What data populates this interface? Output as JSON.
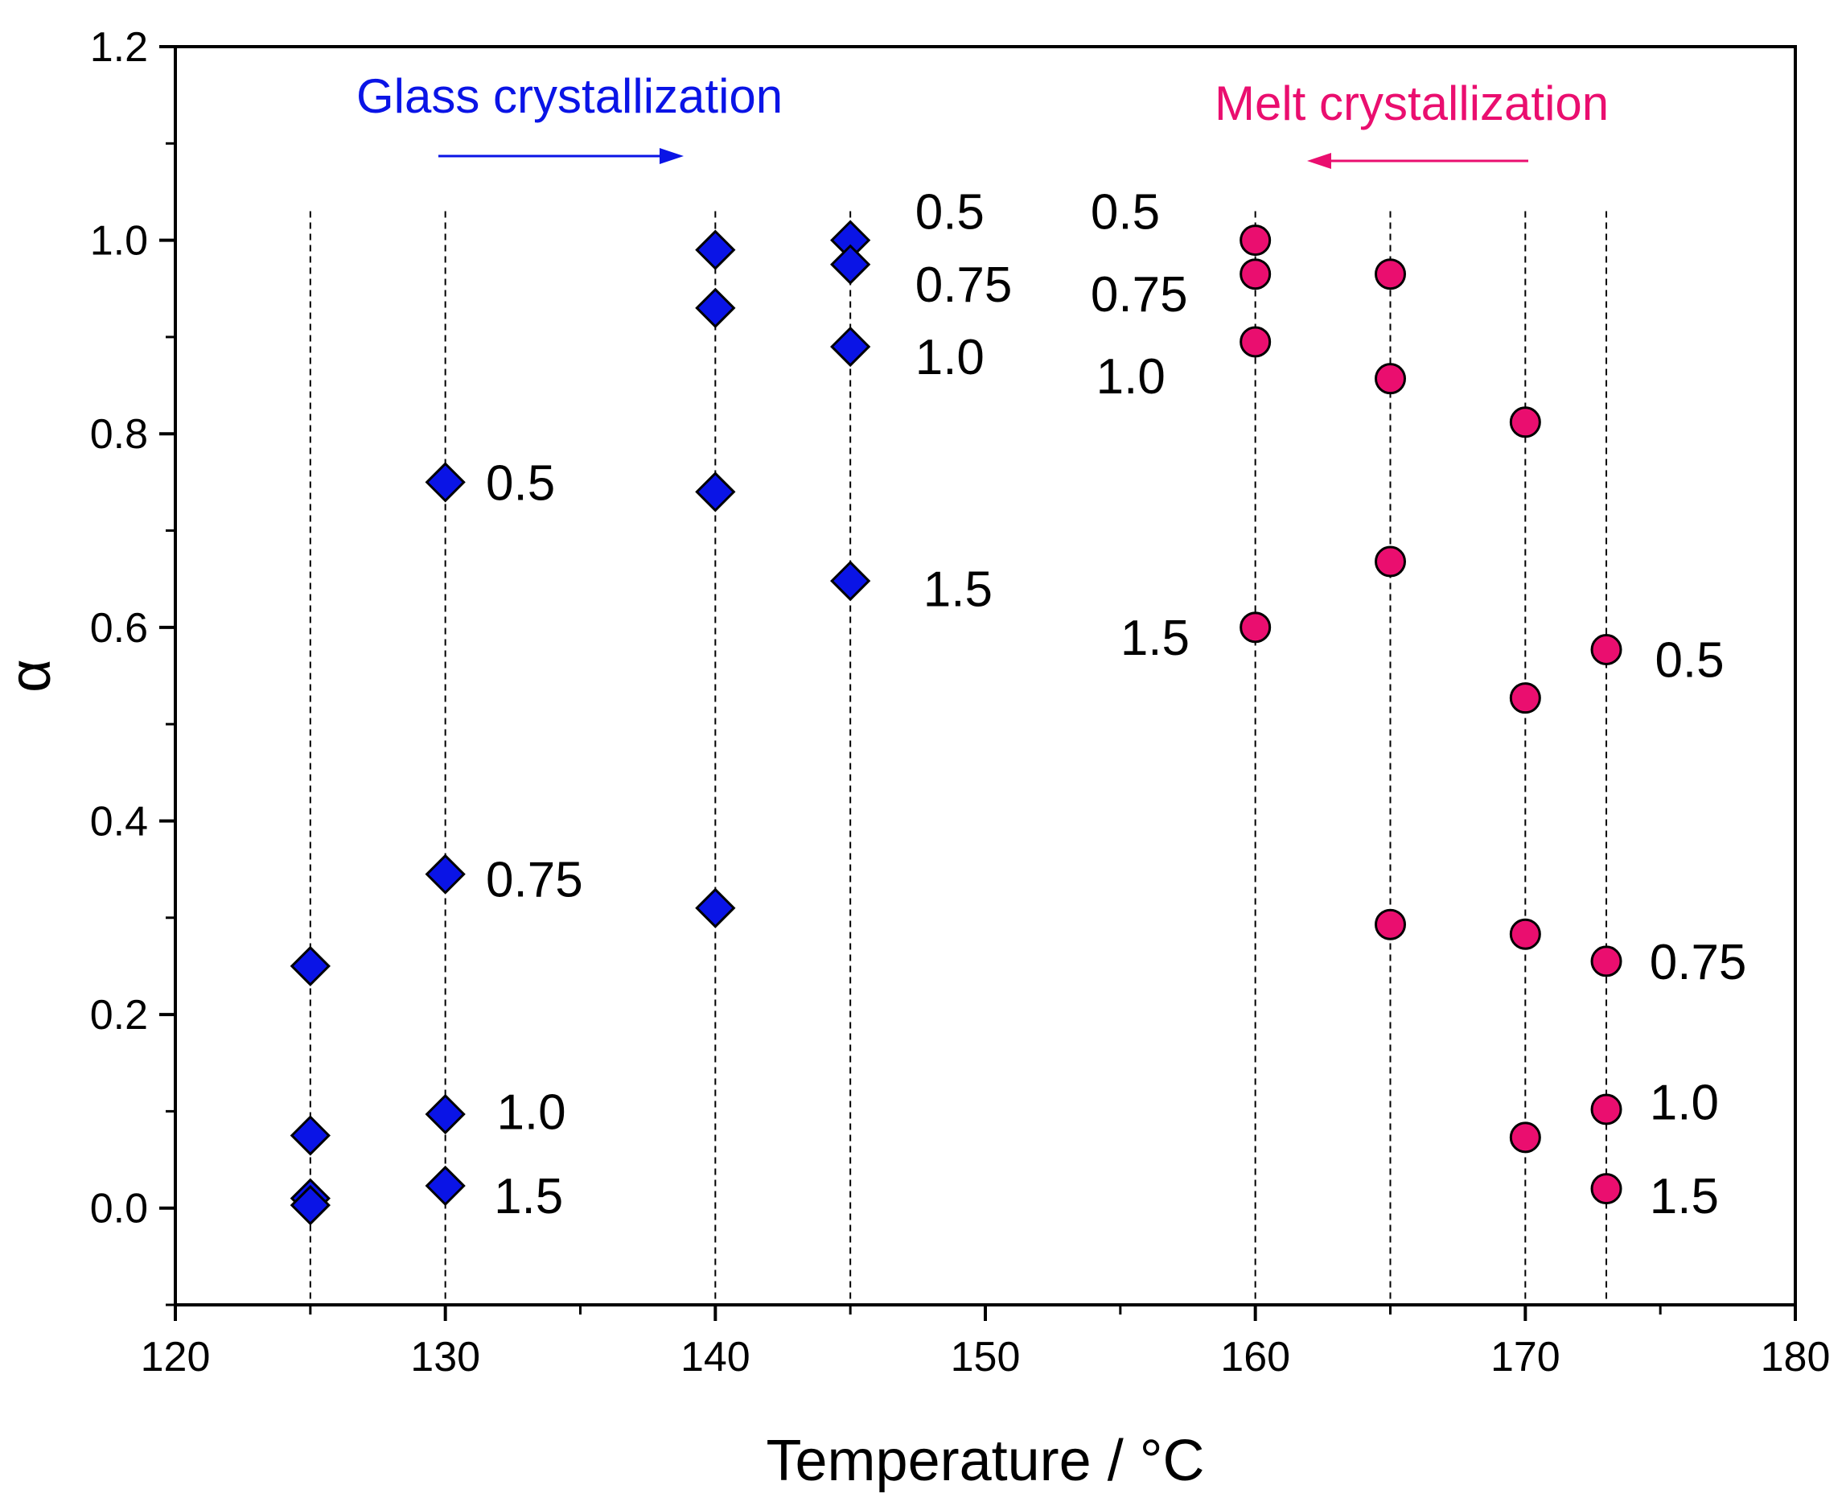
{
  "chart_data": {
    "type": "scatter",
    "title": "",
    "xlabel": "Temperature / °C",
    "ylabel": "α",
    "xlim": [
      120,
      180
    ],
    "ylim": [
      -0.1,
      1.2
    ],
    "xticks": [
      120,
      130,
      140,
      150,
      160,
      170,
      180
    ],
    "yticks": [
      0.0,
      0.2,
      0.4,
      0.6,
      0.8,
      1.0,
      1.2
    ],
    "xtick_labels": [
      "120",
      "130",
      "140",
      "150",
      "160",
      "170",
      "180"
    ],
    "ytick_labels": [
      "0.0",
      "0.2",
      "0.4",
      "0.6",
      "0.8",
      "1.0",
      "1.2"
    ],
    "grid": false,
    "colors": {
      "glass": "#0a14e6",
      "melt": "#ea0e6f"
    },
    "annotations": [
      {
        "text": "Glass crystallization",
        "series": "glass",
        "arrow": "right"
      },
      {
        "text": "Melt crystallization",
        "series": "melt",
        "arrow": "left"
      }
    ],
    "guide_lines": [
      125,
      130,
      140,
      145,
      160,
      165,
      170,
      173
    ],
    "series": [
      {
        "name": "Glass crystallization",
        "marker": "diamond",
        "points": [
          {
            "x": 125,
            "y": 0.25
          },
          {
            "x": 125,
            "y": 0.075
          },
          {
            "x": 125,
            "y": 0.01
          },
          {
            "x": 125,
            "y": 0.003
          },
          {
            "x": 130,
            "y": 0.75
          },
          {
            "x": 130,
            "y": 0.345
          },
          {
            "x": 130,
            "y": 0.097
          },
          {
            "x": 130,
            "y": 0.023
          },
          {
            "x": 140,
            "y": 0.99
          },
          {
            "x": 140,
            "y": 0.93
          },
          {
            "x": 140,
            "y": 0.74
          },
          {
            "x": 140,
            "y": 0.31
          },
          {
            "x": 145,
            "y": 1.0
          },
          {
            "x": 145,
            "y": 0.975
          },
          {
            "x": 145,
            "y": 0.89
          },
          {
            "x": 145,
            "y": 0.648
          }
        ]
      },
      {
        "name": "Melt crystallization",
        "marker": "circle",
        "points": [
          {
            "x": 160,
            "y": 1.0
          },
          {
            "x": 160,
            "y": 0.965
          },
          {
            "x": 160,
            "y": 0.895
          },
          {
            "x": 160,
            "y": 0.6
          },
          {
            "x": 165,
            "y": 0.965
          },
          {
            "x": 165,
            "y": 0.857
          },
          {
            "x": 165,
            "y": 0.668
          },
          {
            "x": 165,
            "y": 0.293
          },
          {
            "x": 170,
            "y": 0.812
          },
          {
            "x": 170,
            "y": 0.527
          },
          {
            "x": 170,
            "y": 0.283
          },
          {
            "x": 170,
            "y": 0.073
          },
          {
            "x": 173,
            "y": 0.577
          },
          {
            "x": 173,
            "y": 0.255
          },
          {
            "x": 173,
            "y": 0.102
          },
          {
            "x": 173,
            "y": 0.02
          }
        ]
      }
    ],
    "point_labels": [
      {
        "text": "0.5",
        "x": 131.5,
        "y": 0.75
      },
      {
        "text": "0.75",
        "x": 131.5,
        "y": 0.34
      },
      {
        "text": "1.0",
        "x": 131.9,
        "y": 0.1
      },
      {
        "text": "1.5",
        "x": 131.8,
        "y": 0.013
      },
      {
        "text": "0.5",
        "x": 147.4,
        "y": 1.03
      },
      {
        "text": "0.75",
        "x": 147.4,
        "y": 0.955
      },
      {
        "text": "1.0",
        "x": 147.4,
        "y": 0.88
      },
      {
        "text": "1.5",
        "x": 147.7,
        "y": 0.64
      },
      {
        "text": "0.5",
        "x": 153.9,
        "y": 1.03
      },
      {
        "text": "0.75",
        "x": 153.9,
        "y": 0.945
      },
      {
        "text": "1.0",
        "x": 154.1,
        "y": 0.86
      },
      {
        "text": "1.5",
        "x": 155.0,
        "y": 0.59
      },
      {
        "text": "0.5",
        "x": 174.8,
        "y": 0.567
      },
      {
        "text": "0.75",
        "x": 174.6,
        "y": 0.255
      },
      {
        "text": "1.0",
        "x": 174.6,
        "y": 0.11
      },
      {
        "text": "1.5",
        "x": 174.6,
        "y": 0.013
      }
    ]
  }
}
